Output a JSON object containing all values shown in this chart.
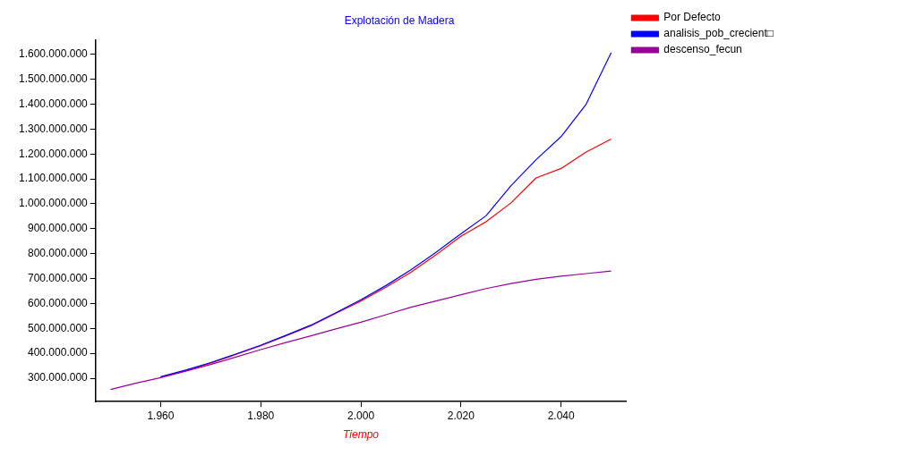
{
  "chart_data": {
    "type": "line",
    "title": "Explotación de Madera",
    "xlabel": "Tiempo",
    "x": [
      1950,
      1955,
      1960,
      1965,
      1970,
      1975,
      1980,
      1985,
      1990,
      1995,
      2000,
      2005,
      2010,
      2015,
      2020,
      2025,
      2030,
      2035,
      2040,
      2045,
      2050
    ],
    "series": [
      {
        "name": "Por Defecto",
        "color": "#ff0000",
        "values": [
          null,
          null,
          305000000,
          330000000,
          360000000,
          395000000,
          430000000,
          470000000,
          510000000,
          560000000,
          610000000,
          665000000,
          725000000,
          795000000,
          870000000,
          928000000,
          1004000000,
          1104000000,
          1142000000,
          1208000000,
          1260000000
        ]
      },
      {
        "name": "analisis_pob_crecient□",
        "color": "#0000ff",
        "values": [
          null,
          null,
          306000000,
          333000000,
          363000000,
          397000000,
          433000000,
          472000000,
          513000000,
          563000000,
          615000000,
          672000000,
          735000000,
          805000000,
          880000000,
          952000000,
          1073000000,
          1177000000,
          1270000000,
          1400000000,
          1607000000
        ]
      },
      {
        "name": "descenso_fecun",
        "color": "#990099",
        "values": [
          255000000,
          280000000,
          302000000,
          328000000,
          355000000,
          385000000,
          415000000,
          443000000,
          470000000,
          498000000,
          525000000,
          555000000,
          585000000,
          610000000,
          635000000,
          660000000,
          680000000,
          697000000,
          710000000,
          720000000,
          730000000
        ]
      }
    ],
    "xlim": [
      1947,
      2053
    ],
    "xticks": [
      {
        "value": 1960,
        "label": "1.960"
      },
      {
        "value": 1980,
        "label": "1.980"
      },
      {
        "value": 2000,
        "label": "2.000"
      },
      {
        "value": 2020,
        "label": "2.020"
      },
      {
        "value": 2040,
        "label": "2.040"
      }
    ],
    "ylim": [
      206000000,
      1659000000
    ],
    "yticks": [
      {
        "value": 300000000,
        "label": "300.000.000"
      },
      {
        "value": 400000000,
        "label": "400.000.000"
      },
      {
        "value": 500000000,
        "label": "500.000.000"
      },
      {
        "value": 600000000,
        "label": "600.000.000"
      },
      {
        "value": 700000000,
        "label": "700.000.000"
      },
      {
        "value": 800000000,
        "label": "800.000.000"
      },
      {
        "value": 900000000,
        "label": "900.000.000"
      },
      {
        "value": 1000000000,
        "label": "1.000.000.000"
      },
      {
        "value": 1100000000,
        "label": "1.100.000.000"
      },
      {
        "value": 1200000000,
        "label": "1.200.000.000"
      },
      {
        "value": 1300000000,
        "label": "1.300.000.000"
      },
      {
        "value": 1400000000,
        "label": "1.400.000.000"
      },
      {
        "value": 1500000000,
        "label": "1.500.000.000"
      },
      {
        "value": 1600000000,
        "label": "1.600.000.000"
      }
    ],
    "grid": false,
    "legend": "top right",
    "marker": "none",
    "line_style": "solid"
  }
}
